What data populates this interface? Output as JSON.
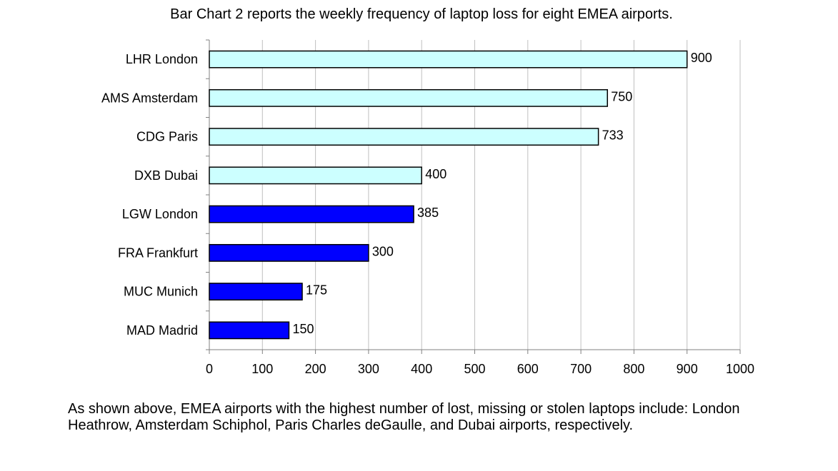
{
  "chart_data": {
    "type": "bar",
    "orientation": "horizontal",
    "title": "Bar Chart 2 reports the weekly frequency of laptop loss for eight EMEA airports.",
    "categories": [
      "LHR London",
      "AMS Amsterdam",
      "CDG Paris",
      "DXB Dubai",
      "LGW London",
      "FRA Frankfurt",
      "MUC Munich",
      "MAD Madrid"
    ],
    "values": [
      900,
      750,
      733,
      400,
      385,
      300,
      175,
      150
    ],
    "bar_colors": [
      "#ccffff",
      "#ccffff",
      "#ccffff",
      "#ccffff",
      "#0000ff",
      "#0000ff",
      "#0000ff",
      "#0000ff"
    ],
    "xlim": [
      0,
      1000
    ],
    "xticks": [
      0,
      100,
      200,
      300,
      400,
      500,
      600,
      700,
      800,
      900,
      1000
    ],
    "grid": true,
    "grid_color": "#c0c0c0",
    "xlabel": "",
    "ylabel": ""
  },
  "caption": "As shown above, EMEA airports with the highest number of lost, missing or stolen laptops include: London Heathrow, Amsterdam Schiphol, Paris Charles deGaulle, and Dubai airports, respectively."
}
